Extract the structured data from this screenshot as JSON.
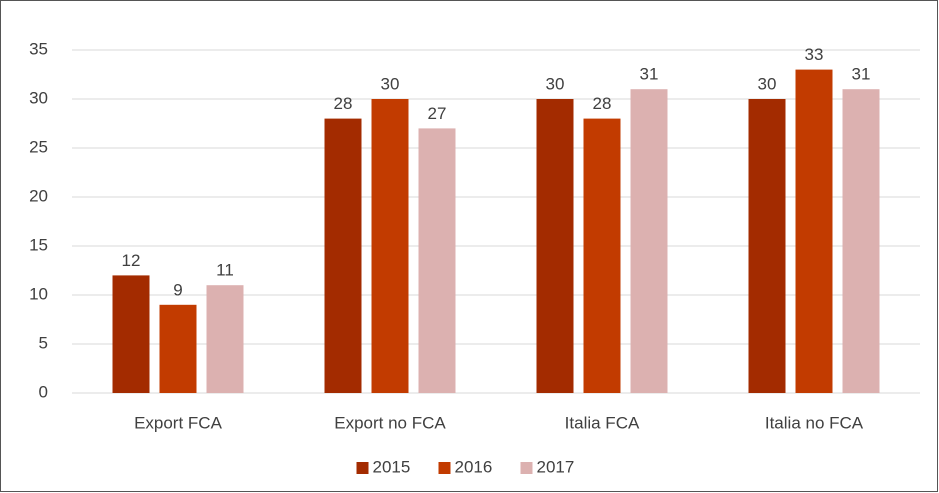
{
  "chart_data": {
    "type": "bar",
    "categories": [
      "Export FCA",
      "Export no FCA",
      "Italia FCA",
      "Italia no FCA"
    ],
    "series": [
      {
        "name": "2015",
        "color": "#a32b00",
        "values": [
          12,
          28,
          30,
          30
        ]
      },
      {
        "name": "2016",
        "color": "#c23b00",
        "values": [
          9,
          30,
          28,
          33
        ]
      },
      {
        "name": "2017",
        "color": "#dcb1b0",
        "values": [
          11,
          27,
          31,
          31
        ]
      }
    ],
    "ylim": [
      0,
      35
    ],
    "yticks": [
      0,
      5,
      10,
      15,
      20,
      25,
      30,
      35
    ],
    "grid": true,
    "legend": "bottom"
  }
}
